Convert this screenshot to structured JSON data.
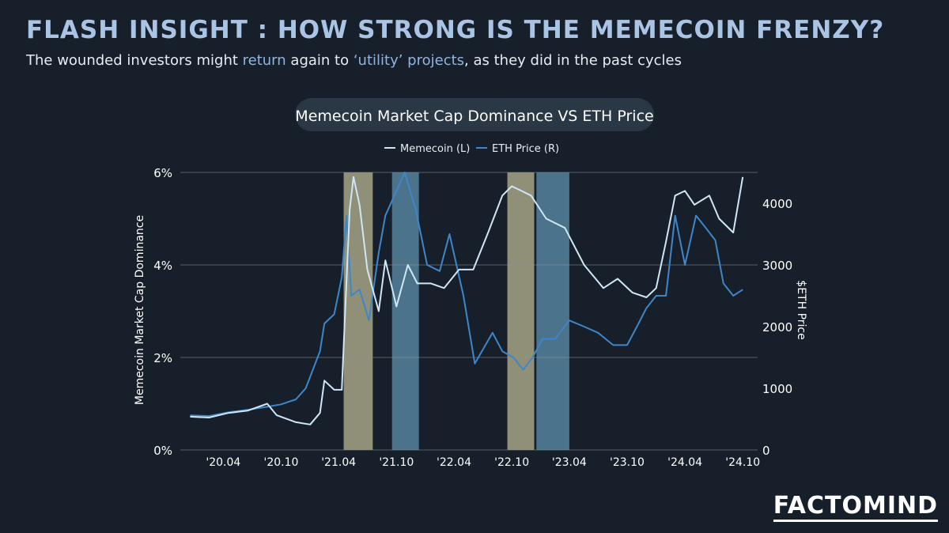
{
  "header": {
    "title": "FLASH INSIGHT : HOW STRONG IS THE MEMECOIN FRENZY?",
    "subtitle_parts": [
      "The wounded investors might ",
      "return",
      " again to ",
      "‘utility’ projects",
      ", as they did in the past cycles"
    ]
  },
  "brand": {
    "logo_text": "FACTOMIND"
  },
  "colors": {
    "background": "#17202a",
    "memecoin_line": "#cfe6f7",
    "eth_line": "#3f86c8",
    "band_tan": "#a6a586",
    "band_blue": "#56839e",
    "grid": "#8b949e"
  },
  "chart_data": {
    "type": "line",
    "title": "Memecoin Market Cap Dominance VS ETH Price",
    "ylabel": "Memecoin Market Cap Dominance",
    "y2label": "$ETH Price",
    "ylim": [
      0,
      6
    ],
    "y2lim": [
      0,
      4500
    ],
    "yticks": [
      "0%",
      "2%",
      "4%",
      "6%"
    ],
    "y2ticks": [
      "0",
      "1000",
      "2000",
      "3000",
      "4000"
    ],
    "xticks": [
      "'20.04",
      "'20.10",
      "'21.04",
      "'21.10",
      "'22.04",
      "'22.10",
      "'23.04",
      "'23.10",
      "'24.04",
      "'24.10"
    ],
    "xlim": [
      "2019-12-01",
      "2024-12-01"
    ],
    "legend": "top-center",
    "grid": true,
    "highlight_bands": [
      {
        "start": "2021-05-01",
        "end": "2021-08-01",
        "color": "tan"
      },
      {
        "start": "2021-10-01",
        "end": "2021-12-25",
        "color": "blue"
      },
      {
        "start": "2022-10-01",
        "end": "2022-12-25",
        "color": "tan"
      },
      {
        "start": "2023-01-01",
        "end": "2023-04-15",
        "color": "blue"
      }
    ],
    "series": [
      {
        "name": "Memecoin (L)",
        "axis": "left",
        "points": [
          [
            "2020-01-01",
            0.72
          ],
          [
            "2020-03-01",
            0.7
          ],
          [
            "2020-05-01",
            0.8
          ],
          [
            "2020-07-01",
            0.85
          ],
          [
            "2020-09-01",
            1.0
          ],
          [
            "2020-10-01",
            0.75
          ],
          [
            "2020-12-01",
            0.6
          ],
          [
            "2021-01-15",
            0.55
          ],
          [
            "2021-02-15",
            0.8
          ],
          [
            "2021-03-01",
            1.5
          ],
          [
            "2021-04-01",
            1.3
          ],
          [
            "2021-04-25",
            1.3
          ],
          [
            "2021-05-05",
            2.9
          ],
          [
            "2021-05-20",
            5.2
          ],
          [
            "2021-06-01",
            5.9
          ],
          [
            "2021-06-20",
            5.3
          ],
          [
            "2021-07-15",
            3.9
          ],
          [
            "2021-08-20",
            3.0
          ],
          [
            "2021-09-10",
            4.1
          ],
          [
            "2021-10-15",
            3.1
          ],
          [
            "2021-11-20",
            4.0
          ],
          [
            "2021-12-20",
            3.6
          ],
          [
            "2022-02-01",
            3.6
          ],
          [
            "2022-03-15",
            3.5
          ],
          [
            "2022-05-01",
            3.9
          ],
          [
            "2022-06-15",
            3.9
          ],
          [
            "2022-08-01",
            4.7
          ],
          [
            "2022-09-15",
            5.5
          ],
          [
            "2022-10-15",
            5.7
          ],
          [
            "2022-11-15",
            5.6
          ],
          [
            "2022-12-15",
            5.5
          ],
          [
            "2023-02-01",
            5.0
          ],
          [
            "2023-04-01",
            4.8
          ],
          [
            "2023-06-01",
            4.0
          ],
          [
            "2023-08-01",
            3.5
          ],
          [
            "2023-09-15",
            3.7
          ],
          [
            "2023-11-01",
            3.4
          ],
          [
            "2023-12-15",
            3.3
          ],
          [
            "2024-01-15",
            3.5
          ],
          [
            "2024-02-15",
            4.5
          ],
          [
            "2024-03-15",
            5.5
          ],
          [
            "2024-04-15",
            5.6
          ],
          [
            "2024-05-15",
            5.3
          ],
          [
            "2024-07-01",
            5.5
          ],
          [
            "2024-08-01",
            5.0
          ],
          [
            "2024-09-15",
            4.7
          ],
          [
            "2024-10-15",
            5.9
          ]
        ]
      },
      {
        "name": "ETH Price (R)",
        "axis": "right",
        "points": [
          [
            "2020-01-01",
            560
          ],
          [
            "2020-03-01",
            550
          ],
          [
            "2020-05-01",
            610
          ],
          [
            "2020-07-01",
            650
          ],
          [
            "2020-09-01",
            700
          ],
          [
            "2020-10-15",
            740
          ],
          [
            "2020-12-01",
            820
          ],
          [
            "2021-01-01",
            1000
          ],
          [
            "2021-02-15",
            1600
          ],
          [
            "2021-03-01",
            2050
          ],
          [
            "2021-04-01",
            2200
          ],
          [
            "2021-04-25",
            2800
          ],
          [
            "2021-05-10",
            3800
          ],
          [
            "2021-05-25",
            2500
          ],
          [
            "2021-06-20",
            2600
          ],
          [
            "2021-07-20",
            2100
          ],
          [
            "2021-08-20",
            3200
          ],
          [
            "2021-09-10",
            3800
          ],
          [
            "2021-10-15",
            4200
          ],
          [
            "2021-11-10",
            4500
          ],
          [
            "2021-12-15",
            3900
          ],
          [
            "2022-01-20",
            3000
          ],
          [
            "2022-03-01",
            2900
          ],
          [
            "2022-04-01",
            3500
          ],
          [
            "2022-05-15",
            2500
          ],
          [
            "2022-06-20",
            1400
          ],
          [
            "2022-08-15",
            1900
          ],
          [
            "2022-09-15",
            1600
          ],
          [
            "2022-10-20",
            1500
          ],
          [
            "2022-11-20",
            1300
          ],
          [
            "2022-12-20",
            1500
          ],
          [
            "2023-01-20",
            1800
          ],
          [
            "2023-03-01",
            1800
          ],
          [
            "2023-04-15",
            2100
          ],
          [
            "2023-06-01",
            2000
          ],
          [
            "2023-07-15",
            1900
          ],
          [
            "2023-09-01",
            1700
          ],
          [
            "2023-10-15",
            1700
          ],
          [
            "2023-11-15",
            2000
          ],
          [
            "2023-12-15",
            2300
          ],
          [
            "2024-01-15",
            2500
          ],
          [
            "2024-02-15",
            2500
          ],
          [
            "2024-03-15",
            3800
          ],
          [
            "2024-04-15",
            3000
          ],
          [
            "2024-05-20",
            3800
          ],
          [
            "2024-06-20",
            3600
          ],
          [
            "2024-07-20",
            3400
          ],
          [
            "2024-08-15",
            2700
          ],
          [
            "2024-09-15",
            2500
          ],
          [
            "2024-10-15",
            2600
          ]
        ]
      }
    ]
  }
}
